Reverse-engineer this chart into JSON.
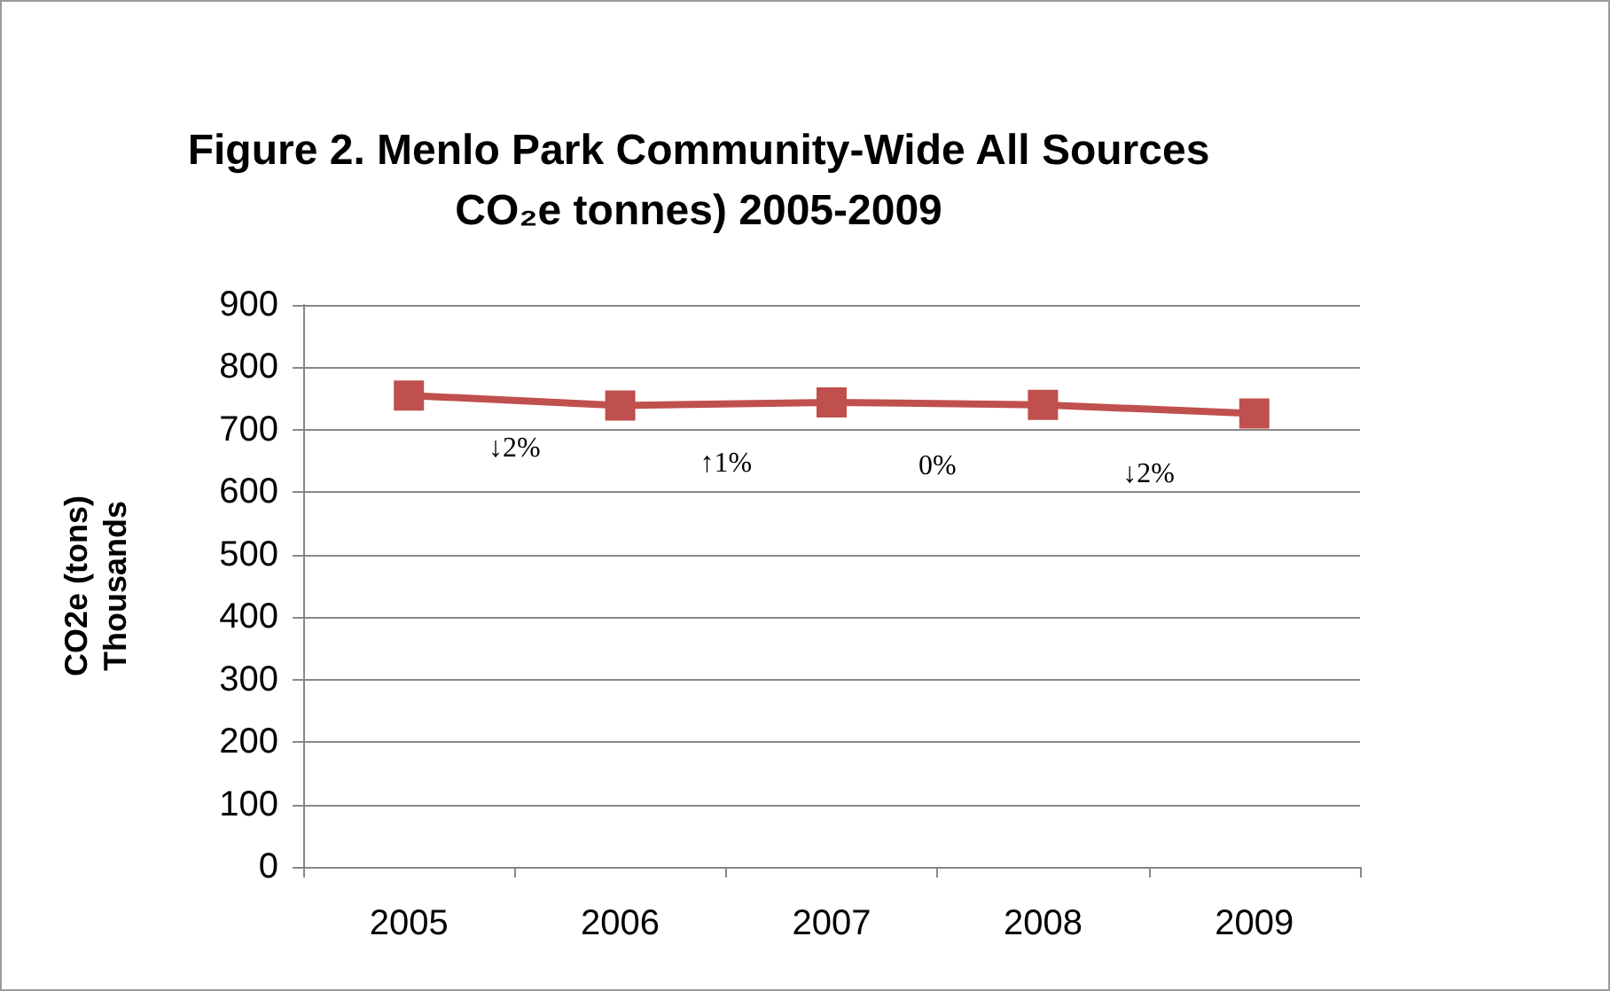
{
  "chart_data": {
    "type": "line",
    "title": "Figure 2. Menlo Park Community-Wide All Sources\nCO₂e tonnes) 2005-2009",
    "ylabel": "CO2e (tons)\nThousands",
    "categories": [
      "2005",
      "2006",
      "2007",
      "2008",
      "2009"
    ],
    "series": [
      {
        "color": "#c0504d",
        "values": [
          755,
          739,
          744,
          740,
          726
        ]
      }
    ],
    "ylim": [
      0,
      900
    ],
    "yticks": [
      0,
      100,
      200,
      300,
      400,
      500,
      600,
      700,
      800,
      900
    ],
    "grid": "y",
    "marker": "square",
    "line_style": "solid",
    "annotations": [
      "↓2%",
      "↑1%",
      "0%",
      "↓2%"
    ]
  }
}
